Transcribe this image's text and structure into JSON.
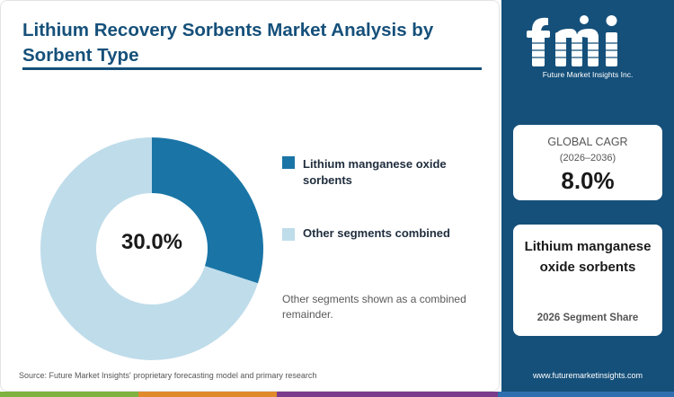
{
  "title": "Lithium Recovery Sorbents Market Analysis by Sorbent Type",
  "chart_data": {
    "type": "pie",
    "donut": true,
    "center_label": "30.0%",
    "series": [
      {
        "name": "Lithium manganese oxide sorbents",
        "value": 30.0,
        "color": "#1a75a6"
      },
      {
        "name": "Other segments combined",
        "value": 70.0,
        "color": "#bfdcea"
      }
    ],
    "legend_position": "right"
  },
  "note": "Other segments shown as a combined remainder.",
  "source": "Source: Future Market Insights' proprietary forecasting model and primary research",
  "sidebar": {
    "logo_text": "Future Market Insights Inc.",
    "cagr": {
      "label": "GLOBAL CAGR",
      "period": "(2026–2036)",
      "value": "8.0%"
    },
    "segment": {
      "name": "Lithium manganese oxide sorbents",
      "subtitle": "2026 Segment Share"
    },
    "website": "www.futuremarketinsights.com"
  },
  "colors": {
    "brand_navy": "#15507a",
    "stripe": [
      "#7fb241",
      "#e08a2c",
      "#7a3b8c",
      "#2f6fb0"
    ]
  }
}
